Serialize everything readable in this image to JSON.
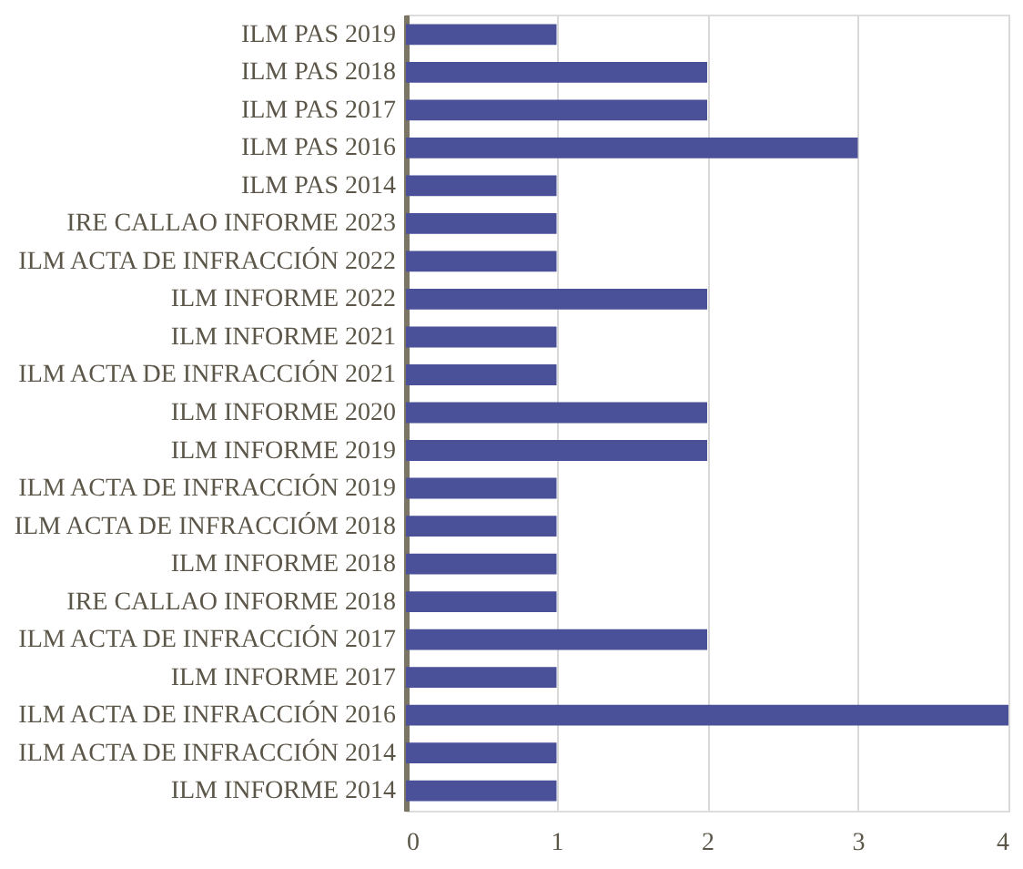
{
  "chart_data": {
    "type": "bar",
    "orientation": "horizontal",
    "categories": [
      "ILM PAS 2019",
      "ILM PAS 2018",
      "ILM PAS 2017",
      "ILM PAS 2016",
      "ILM PAS 2014",
      "IRE CALLAO INFORME 2023",
      "ILM ACTA DE INFRACCIÓN 2022",
      "ILM INFORME 2022",
      "ILM INFORME 2021",
      "ILM ACTA DE INFRACCIÓN 2021",
      "ILM INFORME 2020",
      "ILM INFORME 2019",
      "ILM ACTA DE INFRACCIÓN 2019",
      "ILM ACTA DE INFRACCIÓM 2018",
      "ILM INFORME 2018",
      "IRE CALLAO INFORME 2018",
      "ILM ACTA DE INFRACCIÓN 2017",
      "ILM INFORME 2017",
      "ILM ACTA DE INFRACCIÓN 2016",
      "ILM ACTA DE INFRACCIÓN 2014",
      "ILM INFORME 2014"
    ],
    "values": [
      1,
      2,
      2,
      3,
      1,
      1,
      1,
      2,
      1,
      1,
      2,
      2,
      1,
      1,
      1,
      1,
      2,
      1,
      4,
      1,
      1
    ],
    "color": "#4b5199",
    "xlim": [
      0,
      4
    ],
    "xticks": [
      0,
      1,
      2,
      3,
      4
    ],
    "grid": "x"
  }
}
